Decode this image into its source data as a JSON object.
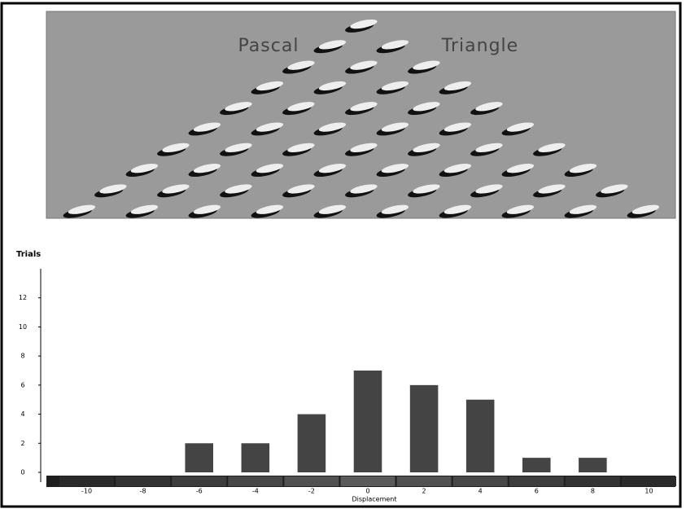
{
  "board": {
    "title_left": "Pascal",
    "title_right": "Triangle"
  },
  "chart_data": {
    "type": "bar",
    "y_label": "Trials",
    "x_label": "Displacement",
    "categories": [
      -10,
      -8,
      -6,
      -4,
      -2,
      0,
      2,
      4,
      6,
      8,
      10
    ],
    "values": [
      0,
      0,
      2,
      2,
      4,
      7,
      6,
      5,
      1,
      1,
      0
    ],
    "color": "#444444",
    "ylim": [
      0,
      14
    ],
    "yticks": [
      0,
      2,
      4,
      6,
      8,
      10,
      12
    ]
  }
}
